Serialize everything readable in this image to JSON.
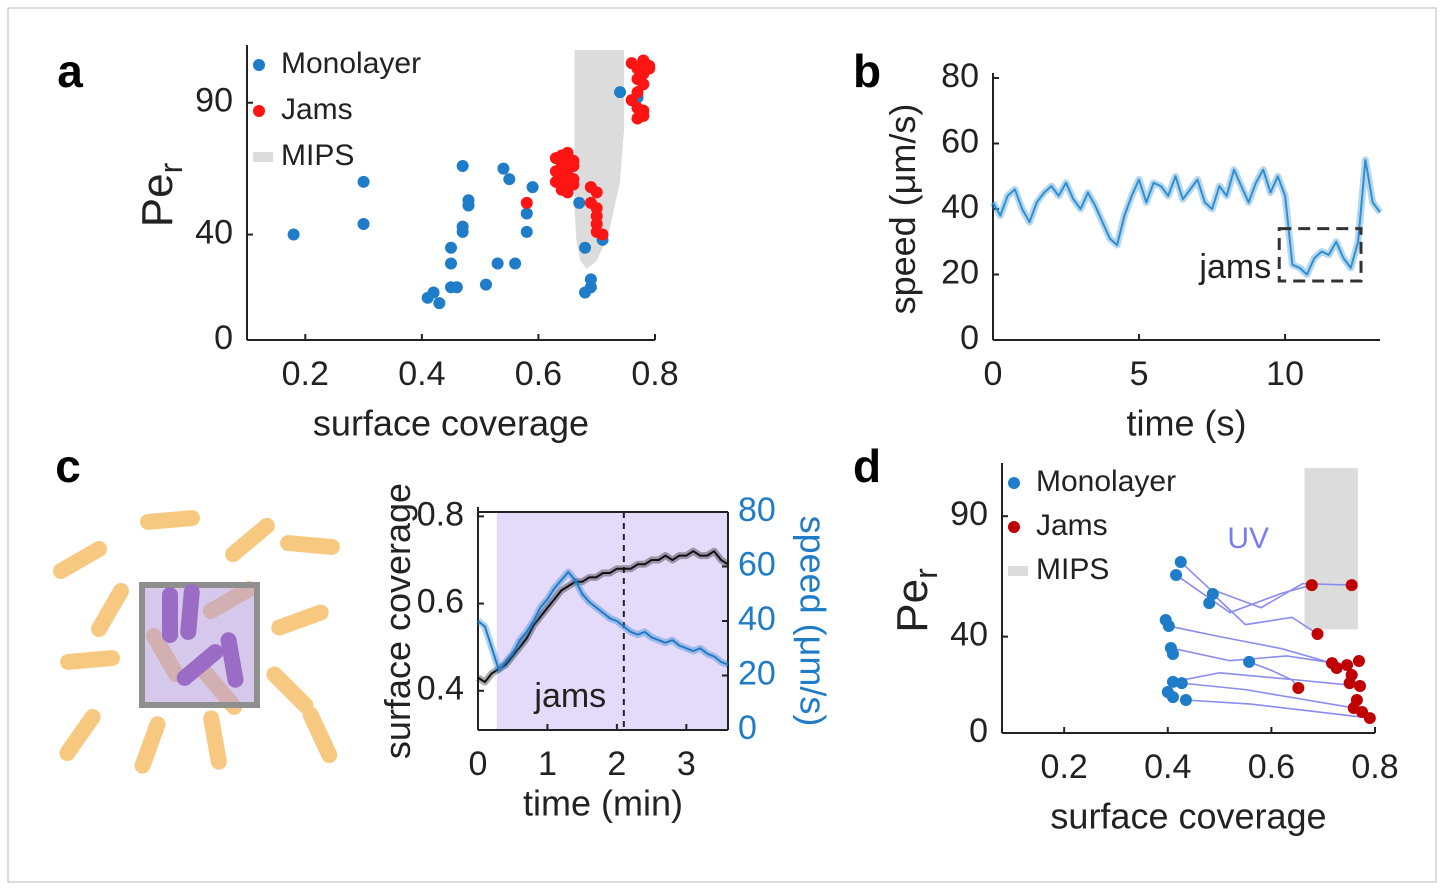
{
  "chart_data": [
    {
      "type": "scatter",
      "panel": "a",
      "xlabel": "surface coverage",
      "ylabel": "Pe",
      "ylabel_sub": "r",
      "xlim": [
        0.1,
        0.8
      ],
      "ylim": [
        0,
        110
      ],
      "xticks": [
        0.2,
        0.4,
        0.6,
        0.8
      ],
      "yticks": [
        0,
        40,
        90
      ],
      "legend": "upper left",
      "series": [
        {
          "name": "Monolayer",
          "color": "#1f7cc8",
          "x": [
            0.18,
            0.3,
            0.3,
            0.41,
            0.42,
            0.43,
            0.45,
            0.46,
            0.45,
            0.45,
            0.47,
            0.47,
            0.47,
            0.48,
            0.48,
            0.51,
            0.54,
            0.53,
            0.55,
            0.56,
            0.58,
            0.58,
            0.59,
            0.67,
            0.68,
            0.68,
            0.69,
            0.69,
            0.71,
            0.74,
            0.77
          ],
          "y": [
            40,
            60,
            44,
            16,
            18,
            14,
            20,
            20,
            29,
            35,
            41,
            43,
            66,
            53,
            51,
            21,
            65,
            29,
            61,
            29,
            48,
            41,
            58,
            52,
            35,
            18,
            20,
            23,
            38,
            94,
            92
          ]
        },
        {
          "name": "Jams",
          "color": "#ff1414",
          "x": [
            0.63,
            0.64,
            0.65,
            0.65,
            0.66,
            0.64,
            0.65,
            0.65,
            0.66,
            0.63,
            0.64,
            0.65,
            0.65,
            0.66,
            0.63,
            0.64,
            0.65,
            0.66,
            0.64,
            0.65,
            0.58,
            0.69,
            0.7,
            0.69,
            0.7,
            0.7,
            0.7,
            0.7,
            0.71,
            0.76,
            0.78,
            0.79,
            0.77,
            0.78,
            0.79,
            0.77,
            0.78,
            0.77,
            0.76,
            0.77,
            0.78,
            0.77,
            0.78
          ],
          "y": [
            69,
            70,
            71,
            70,
            68,
            67,
            66,
            65,
            66,
            64,
            63,
            62,
            63,
            61,
            60,
            59,
            58,
            59,
            57,
            56,
            52,
            58,
            56,
            52,
            50,
            47,
            44,
            41,
            40,
            105,
            106,
            104,
            103,
            101,
            103,
            99,
            97,
            94,
            91,
            88,
            85,
            84,
            87
          ]
        }
      ],
      "regions": [
        {
          "name": "MIPS",
          "color": "#dcdcdc",
          "x": [
            0.662,
            0.662,
            0.665,
            0.672,
            0.683,
            0.7,
            0.72,
            0.74,
            0.747,
            0.747
          ],
          "y": [
            110,
            50,
            38,
            30,
            27,
            30,
            40,
            60,
            80,
            110
          ]
        }
      ]
    },
    {
      "type": "line",
      "panel": "b",
      "xlabel": "time (s)",
      "ylabel": "speed (μm/s)",
      "xlim": [
        0,
        13.25
      ],
      "ylim": [
        0,
        80
      ],
      "xticks": [
        0,
        5,
        10
      ],
      "yticks": [
        0,
        20,
        40,
        60,
        80
      ],
      "series": [
        {
          "color": "#2f8fd2",
          "x": [
            0,
            0.25,
            0.5,
            0.75,
            1,
            1.25,
            1.5,
            1.75,
            2,
            2.25,
            2.5,
            2.75,
            3,
            3.25,
            3.5,
            3.75,
            4,
            4.25,
            4.5,
            4.75,
            5,
            5.25,
            5.5,
            5.75,
            6,
            6.25,
            6.5,
            6.75,
            7,
            7.25,
            7.5,
            7.75,
            8,
            8.25,
            8.5,
            8.75,
            9,
            9.25,
            9.5,
            9.75,
            10,
            10.25,
            10.5,
            10.75,
            11,
            11.25,
            11.5,
            11.75,
            12,
            12.25,
            12.5,
            12.75,
            13,
            13.25
          ],
          "y": [
            42,
            38,
            44,
            46,
            40,
            36,
            42,
            45,
            47,
            44,
            48,
            43,
            40,
            45,
            41,
            36,
            31,
            29,
            38,
            44,
            49,
            42,
            48,
            47,
            44,
            50,
            43,
            46,
            49,
            42,
            40,
            47,
            44,
            52,
            47,
            42,
            48,
            52,
            45,
            50,
            44,
            23,
            22,
            20,
            25,
            27,
            26,
            30,
            25,
            22,
            30,
            55,
            42,
            39
          ]
        }
      ],
      "highlight": {
        "label": "jams",
        "x": [
          9.8,
          12.6
        ],
        "y": [
          18,
          34
        ]
      }
    },
    {
      "type": "line",
      "panel": "c",
      "xlabel": "time (min)",
      "ylabel": "surface coverage",
      "y2label": "speed (μm/s)",
      "y2color": "#1f7cc8",
      "xlim": [
        0,
        3.6
      ],
      "ylim": [
        0.31,
        0.81
      ],
      "xticks": [
        0,
        1,
        2,
        3
      ],
      "yticks": [
        0.4,
        0.6,
        0.8
      ],
      "y2lim": [
        0,
        80
      ],
      "y2ticks": [
        0,
        20,
        40,
        60,
        80
      ],
      "span": {
        "label": "jams",
        "x": [
          0.27,
          3.6
        ],
        "color": "#e4dafa"
      },
      "vline": 2.1,
      "series": [
        {
          "color": "#111111",
          "x": [
            0,
            0.1,
            0.2,
            0.3,
            0.4,
            0.5,
            0.6,
            0.7,
            0.8,
            0.9,
            1,
            1.1,
            1.2,
            1.3,
            1.4,
            1.5,
            1.6,
            1.7,
            1.8,
            1.9,
            2,
            2.1,
            2.2,
            2.3,
            2.4,
            2.5,
            2.6,
            2.7,
            2.8,
            2.9,
            3,
            3.1,
            3.2,
            3.3,
            3.4,
            3.5,
            3.6
          ],
          "y": [
            0.43,
            0.42,
            0.44,
            0.45,
            0.46,
            0.48,
            0.5,
            0.52,
            0.55,
            0.57,
            0.59,
            0.61,
            0.63,
            0.64,
            0.65,
            0.65,
            0.66,
            0.66,
            0.67,
            0.67,
            0.68,
            0.68,
            0.68,
            0.69,
            0.69,
            0.7,
            0.7,
            0.71,
            0.7,
            0.71,
            0.71,
            0.72,
            0.71,
            0.71,
            0.72,
            0.7,
            0.69
          ]
        },
        {
          "color": "#1f7cc8",
          "axis": "y2",
          "x": [
            0,
            0.1,
            0.2,
            0.3,
            0.4,
            0.5,
            0.6,
            0.7,
            0.8,
            0.9,
            1,
            1.1,
            1.2,
            1.3,
            1.4,
            1.5,
            1.6,
            1.7,
            1.8,
            1.9,
            2,
            2.1,
            2.2,
            2.3,
            2.4,
            2.5,
            2.6,
            2.7,
            2.8,
            2.9,
            3,
            3.1,
            3.2,
            3.3,
            3.4,
            3.5,
            3.6
          ],
          "y": [
            40,
            38,
            30,
            22,
            25,
            28,
            33,
            36,
            40,
            45,
            48,
            52,
            55,
            58,
            55,
            50,
            47,
            45,
            43,
            41,
            40,
            38,
            36,
            35,
            36,
            34,
            33,
            32,
            33,
            31,
            30,
            29,
            30,
            28,
            27,
            25,
            24
          ]
        }
      ]
    },
    {
      "type": "scatter",
      "panel": "d",
      "xlabel": "surface coverage",
      "ylabel": "Pe",
      "ylabel_sub": "r",
      "xlim": [
        0.08,
        0.8
      ],
      "ylim": [
        0,
        110
      ],
      "xticks": [
        0.2,
        0.4,
        0.6,
        0.8
      ],
      "yticks": [
        0,
        40,
        90
      ],
      "legend": "upper left",
      "annotation": "UV",
      "annotation_color": "#7b7bf0",
      "trajectories": {
        "color": "#8b8bf2",
        "lines": [
          {
            "x": [
              0.416,
              0.52,
              0.62,
              0.678
            ],
            "y": [
              65.6,
              50,
              58,
              61.4
            ]
          },
          {
            "x": [
              0.487,
              0.55,
              0.64,
              0.689
            ],
            "y": [
              57.7,
              45,
              48,
              41.1
            ]
          },
          {
            "x": [
              0.402,
              0.5,
              0.62,
              0.717
            ],
            "y": [
              44.4,
              40,
              35,
              29.0
            ]
          },
          {
            "x": [
              0.406,
              0.52,
              0.63,
              0.746
            ],
            "y": [
              35.3,
              30,
              32,
              28.2
            ]
          },
          {
            "x": [
              0.41,
              0.5,
              0.65,
              0.771
            ],
            "y": [
              21.2,
              25,
              22,
              19.5
            ]
          },
          {
            "x": [
              0.427,
              0.55,
              0.66,
              0.759
            ],
            "y": [
              20.7,
              18,
              14,
              10.4
            ]
          },
          {
            "x": [
              0.435,
              0.56,
              0.68,
              0.79
            ],
            "y": [
              13.7,
              12,
              9,
              6.2
            ]
          },
          {
            "x": [
              0.557,
              0.6,
              0.64,
              0.652
            ],
            "y": [
              29.5,
              26,
              22,
              18.7
            ]
          },
          {
            "x": [
              0.425,
              0.48,
              0.58,
              0.66,
              0.755
            ],
            "y": [
              71,
              60,
              52,
              62,
              61.4
            ]
          }
        ]
      },
      "series": [
        {
          "name": "Monolayer",
          "color": "#1f7cc8",
          "x": [
            0.425,
            0.416,
            0.487,
            0.48,
            0.396,
            0.402,
            0.406,
            0.41,
            0.41,
            0.427,
            0.4,
            0.41,
            0.435,
            0.557
          ],
          "y": [
            71.0,
            65.6,
            57.7,
            53.9,
            46.9,
            44.4,
            35.3,
            32.8,
            21.2,
            20.7,
            17.0,
            14.9,
            13.7,
            29.5
          ]
        },
        {
          "name": "Jams",
          "color": "#c00000",
          "x": [
            0.678,
            0.755,
            0.689,
            0.717,
            0.726,
            0.746,
            0.769,
            0.755,
            0.771,
            0.751,
            0.765,
            0.759,
            0.775,
            0.79,
            0.652
          ],
          "y": [
            61.4,
            61.4,
            41.1,
            29.0,
            27.0,
            28.2,
            29.9,
            24.1,
            19.5,
            20.7,
            13.7,
            10.4,
            8.7,
            6.2,
            18.7
          ]
        }
      ],
      "regions": [
        {
          "name": "MIPS",
          "color": "#dcdcdc",
          "x": [
            0.664,
            0.664,
            0.767,
            0.767
          ],
          "y": [
            110,
            43,
            43,
            110
          ]
        }
      ]
    }
  ]
}
